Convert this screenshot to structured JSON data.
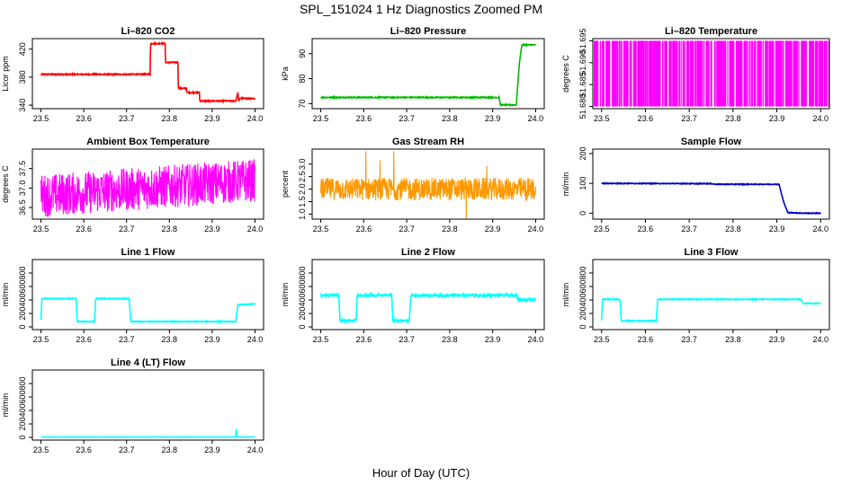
{
  "page": {
    "title": "SPL_151024  1 Hz Diagnostics Zoomed PM",
    "xlabel": "Hour of Day (UTC)"
  },
  "chart_data": [
    {
      "id": "co2",
      "type": "line",
      "title": "Li–820 CO2",
      "ylabel": "Licor ppm",
      "color": "#ff0000",
      "xlim": [
        23.48,
        24.02
      ],
      "ylim": [
        335,
        435
      ],
      "xticks": [
        23.5,
        23.6,
        23.7,
        23.8,
        23.9,
        24.0
      ],
      "xtick_labels": [
        "23.5",
        "23.6",
        "23.7",
        "23.8",
        "23.9",
        "24.0"
      ],
      "yticks": [
        340,
        380,
        420
      ],
      "ytick_labels": [
        "340",
        "380",
        "420"
      ],
      "series": [
        {
          "name": "CO2",
          "x": [
            23.5,
            23.755,
            23.756,
            23.79,
            23.791,
            23.82,
            23.821,
            23.84,
            23.841,
            23.87,
            23.871,
            23.955,
            23.96,
            23.962,
            23.965,
            24.0
          ],
          "y": [
            384,
            384,
            428,
            428,
            401,
            401,
            364,
            364,
            358,
            358,
            346,
            346,
            358,
            345,
            350,
            349
          ]
        }
      ],
      "noise": 0.8
    },
    {
      "id": "pressure",
      "type": "line",
      "title": "Li–820 Pressure",
      "ylabel": "kPa",
      "color": "#00bb00",
      "xlim": [
        23.48,
        24.02
      ],
      "ylim": [
        68,
        96
      ],
      "xticks": [
        23.5,
        23.6,
        23.7,
        23.8,
        23.9,
        24.0
      ],
      "xtick_labels": [
        "23.5",
        "23.6",
        "23.7",
        "23.8",
        "23.9",
        "24.0"
      ],
      "yticks": [
        70,
        80,
        90
      ],
      "ytick_labels": [
        "70",
        "80",
        "90"
      ],
      "series": [
        {
          "name": "Pressure",
          "x": [
            23.5,
            23.915,
            23.918,
            23.955,
            23.962,
            23.968,
            24.0
          ],
          "y": [
            72.5,
            72.5,
            69.5,
            69.5,
            86,
            93.5,
            93.5
          ]
        }
      ],
      "noise": 0.2
    },
    {
      "id": "temperature",
      "type": "bar",
      "title": "Li–820 Temperature",
      "ylabel": "degrees C",
      "color": "#ff00ff",
      "xlim": [
        23.48,
        24.02
      ],
      "ylim": [
        51.6795,
        51.6955
      ],
      "xticks": [
        23.5,
        23.6,
        23.7,
        23.8,
        23.9,
        24.0
      ],
      "xtick_labels": [
        "23.5",
        "23.6",
        "23.7",
        "23.8",
        "23.9",
        "24.0"
      ],
      "yticks": [
        51.68,
        51.685,
        51.69,
        51.695
      ],
      "ytick_labels": [
        "51.680",
        "51.685",
        "51.690",
        "51.695"
      ],
      "series": [
        {
          "name": "Temperature",
          "levels": [
            51.68,
            51.695
          ],
          "toggle_count": 120
        }
      ]
    },
    {
      "id": "box_temp",
      "type": "line",
      "title": "Ambient Box Temperature",
      "ylabel": "degrees C",
      "color": "#ff00ff",
      "xlim": [
        23.48,
        24.02
      ],
      "ylim": [
        36.2,
        38.0
      ],
      "xticks": [
        23.5,
        23.6,
        23.7,
        23.8,
        23.9,
        24.0
      ],
      "xtick_labels": [
        "23.5",
        "23.6",
        "23.7",
        "23.8",
        "23.9",
        "24.0"
      ],
      "yticks": [
        36.5,
        37.0,
        37.5
      ],
      "ytick_labels": [
        "36.5",
        "37.0",
        "37.5"
      ],
      "series": [
        {
          "name": "Box temperature",
          "x": [
            23.5,
            24.0
          ],
          "y": [
            36.8,
            37.2
          ]
        }
      ],
      "noise": 0.55
    },
    {
      "id": "rh",
      "type": "line",
      "title": "Gas Stream RH",
      "ylabel": "percent",
      "color": "#ff9900",
      "xlim": [
        23.48,
        24.02
      ],
      "ylim": [
        0.8,
        3.6
      ],
      "xticks": [
        23.5,
        23.6,
        23.7,
        23.8,
        23.9,
        24.0
      ],
      "xtick_labels": [
        "23.5",
        "23.6",
        "23.7",
        "23.8",
        "23.9",
        "24.0"
      ],
      "yticks": [
        1.0,
        1.5,
        2.0,
        2.5,
        3.0
      ],
      "ytick_labels": [
        "1.0",
        "1.5",
        "2.0",
        "2.5",
        "3.0"
      ],
      "series": [
        {
          "name": "RH",
          "x": [
            23.5,
            24.0
          ],
          "y": [
            2.0,
            2.0
          ]
        }
      ],
      "noise": 0.45
    },
    {
      "id": "sample_flow",
      "type": "line",
      "title": "Sample Flow",
      "ylabel": "ml/min",
      "color": "#0000cc",
      "xlim": [
        23.48,
        24.02
      ],
      "ylim": [
        -20,
        215
      ],
      "xticks": [
        23.5,
        23.6,
        23.7,
        23.8,
        23.9,
        24.0
      ],
      "xtick_labels": [
        "23.5",
        "23.6",
        "23.7",
        "23.8",
        "23.9",
        "24.0"
      ],
      "yticks": [
        0,
        100,
        200
      ],
      "ytick_labels": [
        "0",
        "100",
        "200"
      ],
      "series": [
        {
          "name": "Sample flow",
          "x": [
            23.5,
            23.75,
            23.76,
            23.905,
            23.915,
            23.925,
            23.96,
            24.0
          ],
          "y": [
            100,
            99,
            97,
            97,
            40,
            2,
            0,
            0
          ]
        }
      ],
      "noise": 1.2
    },
    {
      "id": "line1",
      "type": "line",
      "title": "Line 1 Flow",
      "ylabel": "ml/min",
      "color": "#00ffff",
      "xlim": [
        23.48,
        24.02
      ],
      "ylim": [
        -40,
        1000
      ],
      "xticks": [
        23.5,
        23.6,
        23.7,
        23.8,
        23.9,
        24.0
      ],
      "xtick_labels": [
        "23.5",
        "23.6",
        "23.7",
        "23.8",
        "23.9",
        "24.0"
      ],
      "yticks": [
        0,
        200,
        400,
        600,
        800
      ],
      "ytick_labels": [
        "0",
        "200",
        "400",
        "600",
        "800"
      ],
      "series": [
        {
          "name": "Line 1",
          "x": [
            23.5,
            23.502,
            23.582,
            23.585,
            23.625,
            23.628,
            23.706,
            23.71,
            23.955,
            23.96,
            24.0
          ],
          "y": [
            100,
            420,
            420,
            80,
            80,
            420,
            420,
            80,
            80,
            330,
            340
          ]
        }
      ],
      "noise": 6
    },
    {
      "id": "line2",
      "type": "line",
      "title": "Line 2 Flow",
      "ylabel": "ml/min",
      "color": "#00ffff",
      "xlim": [
        23.48,
        24.02
      ],
      "ylim": [
        -40,
        1000
      ],
      "xticks": [
        23.5,
        23.6,
        23.7,
        23.8,
        23.9,
        24.0
      ],
      "xtick_labels": [
        "23.5",
        "23.6",
        "23.7",
        "23.8",
        "23.9",
        "24.0"
      ],
      "yticks": [
        0,
        200,
        400,
        600,
        800
      ],
      "ytick_labels": [
        "0",
        "200",
        "400",
        "600",
        "800"
      ],
      "series": [
        {
          "name": "Line 2",
          "x": [
            23.5,
            23.542,
            23.545,
            23.582,
            23.585,
            23.665,
            23.668,
            23.706,
            23.71,
            23.955,
            23.96,
            24.0
          ],
          "y": [
            470,
            470,
            90,
            90,
            470,
            470,
            90,
            90,
            470,
            470,
            400,
            400
          ]
        }
      ],
      "noise": 18
    },
    {
      "id": "line3",
      "type": "line",
      "title": "Line 3 Flow",
      "ylabel": "ml/min",
      "color": "#00ffff",
      "xlim": [
        23.48,
        24.02
      ],
      "ylim": [
        -40,
        1000
      ],
      "xticks": [
        23.5,
        23.6,
        23.7,
        23.8,
        23.9,
        24.0
      ],
      "xtick_labels": [
        "23.5",
        "23.6",
        "23.7",
        "23.8",
        "23.9",
        "24.0"
      ],
      "yticks": [
        0,
        200,
        400,
        600,
        800
      ],
      "ytick_labels": [
        "0",
        "200",
        "400",
        "600",
        "800"
      ],
      "series": [
        {
          "name": "Line 3",
          "x": [
            23.5,
            23.502,
            23.542,
            23.545,
            23.625,
            23.628,
            23.665,
            23.668,
            23.955,
            23.96,
            24.0
          ],
          "y": [
            100,
            410,
            410,
            90,
            90,
            410,
            410,
            410,
            410,
            350,
            350
          ]
        }
      ],
      "noise": 6
    },
    {
      "id": "line4",
      "type": "line",
      "title": "Line 4 (LT) Flow",
      "ylabel": "ml/min",
      "color": "#00ffff",
      "xlim": [
        23.48,
        24.02
      ],
      "ylim": [
        -40,
        1000
      ],
      "xticks": [
        23.5,
        23.6,
        23.7,
        23.8,
        23.9,
        24.0
      ],
      "xtick_labels": [
        "23.5",
        "23.6",
        "23.7",
        "23.8",
        "23.9",
        "24.0"
      ],
      "yticks": [
        0,
        200,
        400,
        600,
        800
      ],
      "ytick_labels": [
        "0",
        "200",
        "400",
        "600",
        "800"
      ],
      "series": [
        {
          "name": "Line 4",
          "x": [
            23.5,
            23.955,
            23.956,
            23.958,
            23.96,
            24.0
          ],
          "y": [
            5,
            5,
            130,
            5,
            5,
            5
          ]
        }
      ],
      "noise": 1
    }
  ]
}
